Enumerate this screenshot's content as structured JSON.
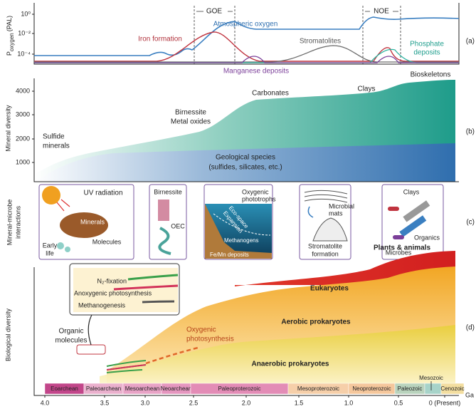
{
  "panel_a": {
    "label": "(a)",
    "y_label": {
      "main": "P",
      "sub": "oxygen",
      "unit": "(PAL)"
    },
    "y_ticks": [
      "10⁰",
      "10⁻²",
      "10⁻⁴"
    ],
    "events": [
      "GOE",
      "NOE"
    ],
    "atmospheric_oxygen": "Atmospheric oxygen",
    "iron_formation": "Iron formation",
    "stromatolites": "Stromatolites",
    "phosphate_deposits": [
      "Phosphate",
      "deposits"
    ],
    "manganese_deposits": "Manganese deposits"
  },
  "panel_b": {
    "label": "(b)",
    "y_label": "Mineral diversity",
    "y_ticks": [
      1000,
      2000,
      3000,
      4000
    ],
    "sulfide_minerals": [
      "Sulfide",
      "minerals"
    ],
    "birnessite": [
      "Birnessite",
      "Metal oxides"
    ],
    "carbonates": "Carbonates",
    "clays": "Clays",
    "bioskeletons": "Bioskeletons",
    "geological_species": [
      "Geological species",
      "(sulfides, silicates, etc.)"
    ]
  },
  "panel_c": {
    "label": "(c)",
    "y_label": [
      "Mineral-microbe",
      "interactions"
    ],
    "box1": [
      "UV radiation",
      "Minerals",
      "Molecules",
      "Early",
      "life"
    ],
    "box2": [
      "Birnessite",
      "OEC"
    ],
    "box3": [
      "Oxygenic",
      "phototrophs",
      "Eco-space",
      "Expansion",
      "Methanogens",
      "Fe/Mn deposits"
    ],
    "box4": [
      "Microbial",
      "mats",
      "Stromatolite",
      "formation"
    ],
    "box5": [
      "Clays",
      "Organics",
      "Microbes"
    ]
  },
  "panel_d": {
    "label": "(d)",
    "y_label": "Biological diversity",
    "inset": [
      "N₂-fixation",
      "Anoxygenic photosynthesis",
      "Methanogenesis"
    ],
    "organic_molecules": [
      "Organic",
      "molecules"
    ],
    "oxygenic_photosynthesis": [
      "Oxygenic",
      "photosynthesis"
    ],
    "eukaryotes": "Eukaryotes",
    "plants_animals": "Plants & animals",
    "aerobic": "Aerobic prokaryotes",
    "anaerobic": "Anaerobic prokaryotes",
    "eons": [
      "Eoarchean",
      "Paleoarchean",
      "Mesoarchean",
      "Neoarchean",
      "Paleoproterozoic",
      "Mesoproterozoic",
      "Neoproterozoic",
      "Paleozoic",
      "Mesozoic",
      "Cenozoic"
    ],
    "x_ticks": [
      "4.0",
      "3.5",
      "3.0",
      "2.5",
      "2.0",
      "1.5",
      "1.0",
      "0.5",
      "0 (Present)"
    ],
    "x_unit": "Ga"
  }
}
